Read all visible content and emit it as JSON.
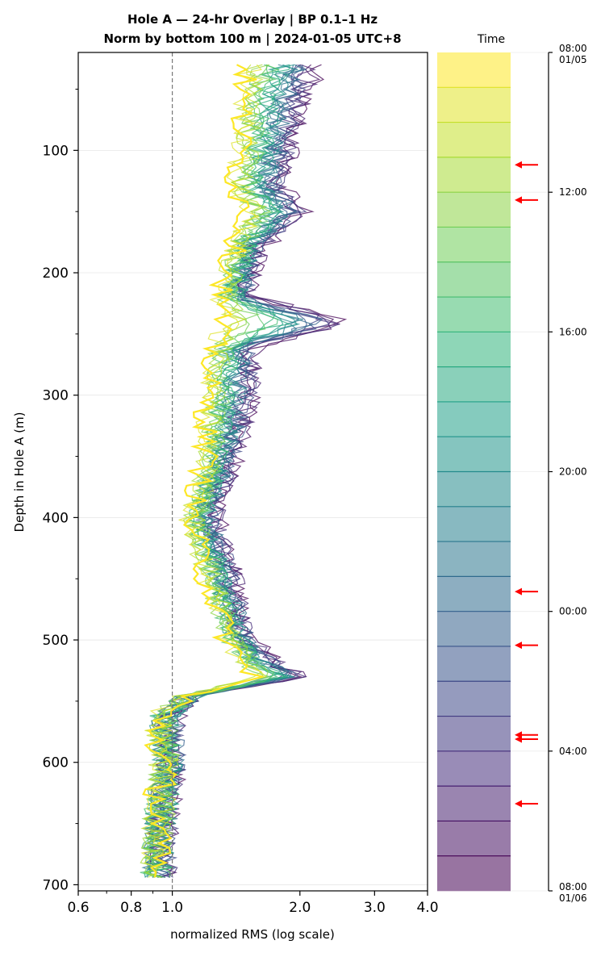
{
  "chart_data": {
    "type": "line",
    "title": "Hole A — 24-hr Overlay  |  BP 0.1–1 Hz",
    "subtitle": "Norm by bottom 100 m  |  2024-01-05 UTC+8",
    "xlabel": "normalized RMS  (log scale)",
    "ylabel": "Depth in Hole A (m)",
    "xscale": "log",
    "xlim": [
      0.6,
      4.0
    ],
    "ylim": [
      705,
      20
    ],
    "xticks": [
      0.6,
      0.8,
      1.0,
      2.0,
      3.0,
      4.0
    ],
    "xtick_labels": [
      "0.6",
      "0.8",
      "1.0",
      "2.0",
      "3.0",
      "4.0"
    ],
    "yticks": [
      100,
      200,
      300,
      400,
      500,
      600,
      700
    ],
    "ytick_labels": [
      "100",
      "200",
      "300",
      "400",
      "500",
      "600",
      "700"
    ],
    "reference_line_x": 1.0,
    "grid": "horizontal",
    "series_count": 24,
    "colormap": "viridis",
    "depth_range": [
      30,
      695
    ],
    "profile_knots": {
      "depth": [
        30,
        60,
        100,
        130,
        150,
        180,
        220,
        240,
        260,
        300,
        350,
        400,
        450,
        500,
        520,
        530,
        545,
        560,
        580,
        600,
        650,
        700
      ],
      "first_hour_rms": [
        1.5,
        1.45,
        1.45,
        1.4,
        1.5,
        1.4,
        1.3,
        1.3,
        1.25,
        1.2,
        1.2,
        1.1,
        1.2,
        1.35,
        1.45,
        1.6,
        1.1,
        0.95,
        0.92,
        0.95,
        0.92,
        0.9
      ],
      "last_hour_rms": [
        2.2,
        2.0,
        1.9,
        1.8,
        2.05,
        1.6,
        1.5,
        2.6,
        1.55,
        1.55,
        1.4,
        1.25,
        1.4,
        1.5,
        1.8,
        2.0,
        1.1,
        1.0,
        1.0,
        1.0,
        0.95,
        0.95
      ]
    },
    "colorbar": {
      "title": "Time",
      "ticks": [
        {
          "frac": 0.0,
          "label": "08:00",
          "label2": "01/05"
        },
        {
          "frac": 0.1667,
          "label": "12:00"
        },
        {
          "frac": 0.3333,
          "label": "16:00"
        },
        {
          "frac": 0.5,
          "label": "20:00"
        },
        {
          "frac": 0.6667,
          "label": "00:00"
        },
        {
          "frac": 0.8333,
          "label": "04:00"
        },
        {
          "frac": 1.0,
          "label": "08:00",
          "label2": "01/06"
        }
      ],
      "bands": 24,
      "arrow_color": "#ff0000",
      "arrow_fracs": [
        0.134,
        0.176,
        0.643,
        0.707,
        0.814,
        0.819,
        0.896
      ]
    }
  }
}
